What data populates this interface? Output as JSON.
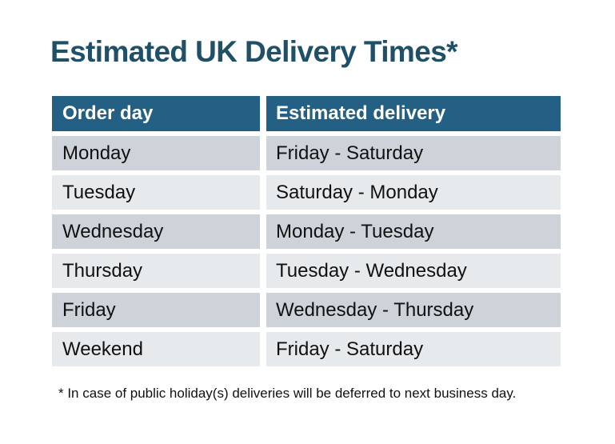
{
  "page": {
    "title": "Estimated UK Delivery Times*",
    "footnote": "* In case of public holiday(s) deliveries will be deferred to next business day."
  },
  "table": {
    "columns": [
      "Order day",
      "Estimated delivery"
    ],
    "rows": [
      {
        "order_day": "Monday",
        "estimated_delivery": "Friday - Saturday"
      },
      {
        "order_day": "Tuesday",
        "estimated_delivery": "Saturday - Monday"
      },
      {
        "order_day": "Wednesday",
        "estimated_delivery": "Monday - Tuesday"
      },
      {
        "order_day": "Thursday",
        "estimated_delivery": "Tuesday - Wednesday"
      },
      {
        "order_day": "Friday",
        "estimated_delivery": "Wednesday - Thursday"
      },
      {
        "order_day": "Weekend",
        "estimated_delivery": "Friday - Saturday"
      }
    ]
  },
  "chart_data": {
    "type": "table",
    "title": "Estimated UK Delivery Times*",
    "columns": [
      "Order day",
      "Estimated delivery"
    ],
    "rows": [
      [
        "Monday",
        "Friday - Saturday"
      ],
      [
        "Tuesday",
        "Saturday - Monday"
      ],
      [
        "Wednesday",
        "Monday - Tuesday"
      ],
      [
        "Thursday",
        "Tuesday - Wednesday"
      ],
      [
        "Friday",
        "Wednesday - Thursday"
      ],
      [
        "Weekend",
        "Friday - Saturday"
      ]
    ],
    "footnote": "* In case of public holiday(s) deliveries will be deferred to next business day.",
    "layout": {
      "header_style": "solid teal band, white bold text",
      "row_striping": "alternating gray (dark, light) starting dark",
      "grid": "white gutters between rows and columns, no borders"
    }
  },
  "colors": {
    "background": "#ffffff",
    "title_text": "#204F68",
    "header_bg": "#236083",
    "header_text": "#ffffff",
    "row_dark": "#CED2D9",
    "row_light": "#E7EAEC",
    "body_text": "#111111"
  }
}
